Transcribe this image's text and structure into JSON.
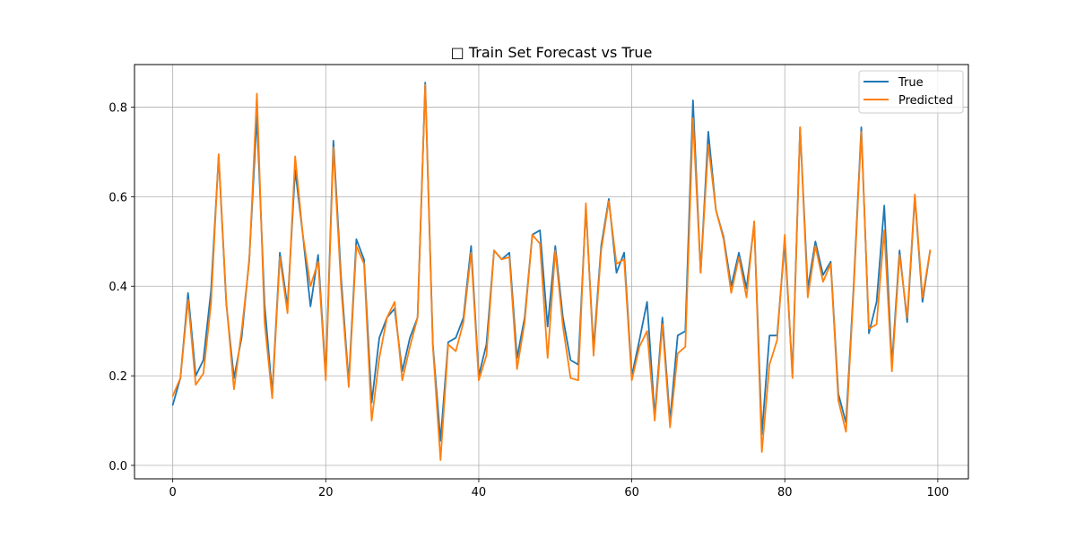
{
  "chart_data": {
    "type": "line",
    "title": "□ Train Set Forecast vs True",
    "xlabel": "",
    "ylabel": "",
    "xlim": [
      -5,
      104
    ],
    "ylim": [
      -0.03,
      0.895
    ],
    "xticks": [
      0,
      20,
      40,
      60,
      80,
      100
    ],
    "yticks": [
      0.0,
      0.2,
      0.4,
      0.6,
      0.8
    ],
    "xtick_labels": [
      "0",
      "20",
      "40",
      "60",
      "80",
      "100"
    ],
    "ytick_labels": [
      "0.0",
      "0.2",
      "0.4",
      "0.6",
      "0.8"
    ],
    "grid": true,
    "legend_position": "top-right",
    "x": [
      0,
      1,
      2,
      3,
      4,
      5,
      6,
      7,
      8,
      9,
      10,
      11,
      12,
      13,
      14,
      15,
      16,
      17,
      18,
      19,
      20,
      21,
      22,
      23,
      24,
      25,
      26,
      27,
      28,
      29,
      30,
      31,
      32,
      33,
      34,
      35,
      36,
      37,
      38,
      39,
      40,
      41,
      42,
      43,
      44,
      45,
      46,
      47,
      48,
      49,
      50,
      51,
      52,
      53,
      54,
      55,
      56,
      57,
      58,
      59,
      60,
      61,
      62,
      63,
      64,
      65,
      66,
      67,
      68,
      69,
      70,
      71,
      72,
      73,
      74,
      75,
      76,
      77,
      78,
      79,
      80,
      81,
      82,
      83,
      84,
      85,
      86,
      87,
      88,
      89,
      90,
      91,
      92,
      93,
      94,
      95,
      96,
      97,
      98,
      99
    ],
    "series": [
      {
        "name": "True",
        "color": "#1f77b4",
        "values": [
          0.135,
          0.195,
          0.385,
          0.2,
          0.235,
          0.39,
          0.69,
          0.36,
          0.195,
          0.285,
          0.46,
          0.78,
          0.36,
          0.16,
          0.475,
          0.355,
          0.66,
          0.515,
          0.355,
          0.47,
          0.2,
          0.725,
          0.42,
          0.185,
          0.505,
          0.46,
          0.14,
          0.285,
          0.33,
          0.35,
          0.21,
          0.285,
          0.33,
          0.855,
          0.27,
          0.055,
          0.275,
          0.285,
          0.33,
          0.49,
          0.2,
          0.27,
          0.48,
          0.46,
          0.475,
          0.24,
          0.33,
          0.515,
          0.525,
          0.31,
          0.49,
          0.33,
          0.235,
          0.225,
          0.575,
          0.26,
          0.49,
          0.595,
          0.43,
          0.475,
          0.2,
          0.28,
          0.365,
          0.11,
          0.33,
          0.1,
          0.29,
          0.3,
          0.815,
          0.43,
          0.745,
          0.57,
          0.51,
          0.4,
          0.475,
          0.395,
          0.54,
          0.07,
          0.29,
          0.29,
          0.5,
          0.205,
          0.755,
          0.395,
          0.5,
          0.425,
          0.455,
          0.16,
          0.095,
          0.4,
          0.755,
          0.295,
          0.365,
          0.58,
          0.225,
          0.48,
          0.32,
          0.6,
          0.365,
          0.48
        ]
      },
      {
        "name": "Predicted",
        "color": "#ff7f0e",
        "values": [
          0.155,
          0.195,
          0.37,
          0.18,
          0.205,
          0.36,
          0.695,
          0.365,
          0.17,
          0.3,
          0.455,
          0.83,
          0.32,
          0.15,
          0.465,
          0.34,
          0.69,
          0.515,
          0.4,
          0.455,
          0.19,
          0.71,
          0.4,
          0.175,
          0.49,
          0.45,
          0.1,
          0.24,
          0.33,
          0.365,
          0.19,
          0.265,
          0.33,
          0.85,
          0.265,
          0.012,
          0.27,
          0.255,
          0.32,
          0.475,
          0.19,
          0.245,
          0.48,
          0.46,
          0.465,
          0.215,
          0.32,
          0.515,
          0.495,
          0.24,
          0.48,
          0.31,
          0.195,
          0.19,
          0.585,
          0.245,
          0.48,
          0.59,
          0.45,
          0.46,
          0.19,
          0.265,
          0.3,
          0.1,
          0.315,
          0.085,
          0.25,
          0.265,
          0.775,
          0.43,
          0.715,
          0.57,
          0.505,
          0.385,
          0.465,
          0.375,
          0.545,
          0.03,
          0.225,
          0.28,
          0.515,
          0.195,
          0.755,
          0.375,
          0.49,
          0.41,
          0.45,
          0.145,
          0.075,
          0.39,
          0.745,
          0.305,
          0.315,
          0.525,
          0.21,
          0.47,
          0.33,
          0.605,
          0.375,
          0.48
        ]
      }
    ]
  }
}
